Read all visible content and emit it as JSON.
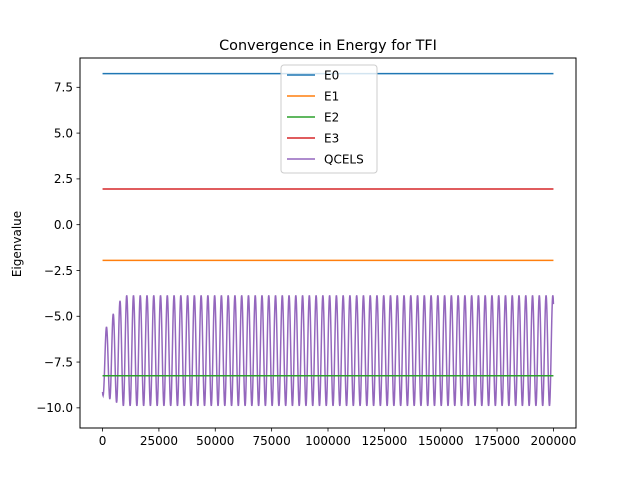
{
  "chart_data": {
    "type": "line",
    "title": "Convergence in Energy for TFI",
    "xlabel": "",
    "ylabel": "Eigenvalue",
    "xlim": [
      -10000,
      210000
    ],
    "ylim": [
      -11.1,
      9.1
    ],
    "xticks": [
      0,
      25000,
      50000,
      75000,
      100000,
      125000,
      150000,
      175000,
      200000
    ],
    "xtick_labels": [
      "0",
      "25000",
      "50000",
      "75000",
      "100000",
      "125000",
      "150000",
      "175000",
      "200000"
    ],
    "yticks": [
      -10.0,
      -7.5,
      -5.0,
      -2.5,
      0.0,
      2.5,
      5.0,
      7.5
    ],
    "ytick_labels": [
      "−10.0",
      "−7.5",
      "−5.0",
      "−2.5",
      "0.0",
      "2.5",
      "5.0",
      "7.5"
    ],
    "grid": false,
    "legend_position": "top-center",
    "series": [
      {
        "name": "E0",
        "color": "#1f77b4",
        "x": [
          0,
          200000
        ],
        "y": [
          8.25,
          8.25
        ]
      },
      {
        "name": "E1",
        "color": "#ff7f0e",
        "x": [
          0,
          200000
        ],
        "y": [
          -1.95,
          -1.95
        ]
      },
      {
        "name": "E2",
        "color": "#2ca02c",
        "x": [
          0,
          200000
        ],
        "y": [
          -8.25,
          -8.25
        ]
      },
      {
        "name": "E3",
        "color": "#d62728",
        "x": [
          0,
          200000
        ],
        "y": [
          1.95,
          1.95
        ]
      },
      {
        "name": "QCELS",
        "color": "#9467bd",
        "x_start": 0,
        "x_end": 200000,
        "oscillation_period": 3000,
        "upper_envelope": -3.85,
        "lower_envelope": -9.9
      }
    ]
  }
}
